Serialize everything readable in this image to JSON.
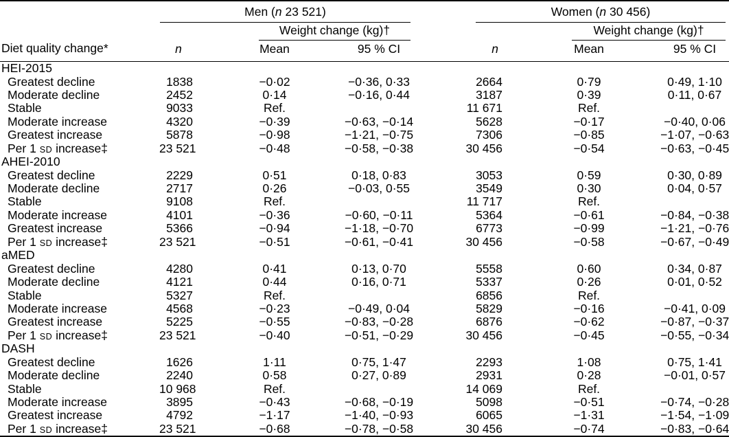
{
  "colors": {
    "background": "#ffffff",
    "text": "#000000",
    "rule": "#000000"
  },
  "table": {
    "stub_header": "Diet quality change*",
    "weight_change_header": "Weight change (kg)†",
    "col_n": "n",
    "col_mean": "Mean",
    "col_ci": "95 % CI",
    "smallcaps_token": "SD",
    "groups": {
      "men": {
        "pre": "Men (",
        "n_italic": "n",
        "post": " 23 521)"
      },
      "women": {
        "pre": "Women (",
        "n_italic": "n",
        "post": " 30 456)"
      }
    },
    "sections": [
      {
        "name": "HEI-2015",
        "rows": [
          {
            "label": "Greatest decline",
            "men_n": "1838",
            "men_mean": "−0·02",
            "men_ci": "−0·36, 0·33",
            "women_n": "2664",
            "women_mean": "0·79",
            "women_ci": "0·49, 1·10"
          },
          {
            "label": "Moderate decline",
            "men_n": "2452",
            "men_mean": "0·14",
            "men_ci": "−0·16, 0·44",
            "women_n": "3187",
            "women_mean": "0·39",
            "women_ci": "0·11, 0·67"
          },
          {
            "label": "Stable",
            "men_n": "9033",
            "men_mean": "Ref.",
            "men_ci": "",
            "women_n": "11 671",
            "women_mean": "Ref.",
            "women_ci": ""
          },
          {
            "label": "Moderate increase",
            "men_n": "4320",
            "men_mean": "−0·39",
            "men_ci": "−0·63, −0·14",
            "women_n": "5628",
            "women_mean": "−0·17",
            "women_ci": "−0·40, 0·06"
          },
          {
            "label": "Greatest increase",
            "men_n": "5878",
            "men_mean": "−0·98",
            "men_ci": "−1·21, −0·75",
            "women_n": "7306",
            "women_mean": "−0·85",
            "women_ci": "−1·07, −0·63"
          },
          {
            "label": "Per 1 SD increase‡",
            "men_n": "23 521",
            "men_mean": "−0·48",
            "men_ci": "−0·58, −0·38",
            "women_n": "30 456",
            "women_mean": "−0·54",
            "women_ci": "−0·63, −0·45"
          }
        ]
      },
      {
        "name": "AHEI-2010",
        "rows": [
          {
            "label": "Greatest decline",
            "men_n": "2229",
            "men_mean": "0·51",
            "men_ci": "0·18, 0·83",
            "women_n": "3053",
            "women_mean": "0·59",
            "women_ci": "0·30, 0·89"
          },
          {
            "label": "Moderate decline",
            "men_n": "2717",
            "men_mean": "0·26",
            "men_ci": "−0·03, 0·55",
            "women_n": "3549",
            "women_mean": "0·30",
            "women_ci": "0·04, 0·57"
          },
          {
            "label": "Stable",
            "men_n": "9108",
            "men_mean": "Ref.",
            "men_ci": "",
            "women_n": "11 717",
            "women_mean": "Ref.",
            "women_ci": ""
          },
          {
            "label": "Moderate increase",
            "men_n": "4101",
            "men_mean": "−0·36",
            "men_ci": "−0·60, −0·11",
            "women_n": "5364",
            "women_mean": "−0·61",
            "women_ci": "−0·84, −0·38"
          },
          {
            "label": "Greatest increase",
            "men_n": "5366",
            "men_mean": "−0·94",
            "men_ci": "−1·18, −0·70",
            "women_n": "6773",
            "women_mean": "−0·99",
            "women_ci": "−1·21, −0·76"
          },
          {
            "label": "Per 1 SD increase‡",
            "men_n": "23 521",
            "men_mean": "−0·51",
            "men_ci": "−0·61, −0·41",
            "women_n": "30 456",
            "women_mean": "−0·58",
            "women_ci": "−0·67, −0·49"
          }
        ]
      },
      {
        "name": "aMED",
        "rows": [
          {
            "label": "Greatest decline",
            "men_n": "4280",
            "men_mean": "0·41",
            "men_ci": "0·13, 0·70",
            "women_n": "5558",
            "women_mean": "0·60",
            "women_ci": "0·34, 0·87"
          },
          {
            "label": "Moderate decline",
            "men_n": "4121",
            "men_mean": "0·44",
            "men_ci": "0·16, 0·71",
            "women_n": "5337",
            "women_mean": "0·26",
            "women_ci": "0·01, 0·52"
          },
          {
            "label": "Stable",
            "men_n": "5327",
            "men_mean": "Ref.",
            "men_ci": "",
            "women_n": "6856",
            "women_mean": "Ref.",
            "women_ci": ""
          },
          {
            "label": "Moderate increase",
            "men_n": "4568",
            "men_mean": "−0·23",
            "men_ci": "−0·49, 0·04",
            "women_n": "5829",
            "women_mean": "−0·16",
            "women_ci": "−0·41, 0·09"
          },
          {
            "label": "Greatest increase",
            "men_n": "5225",
            "men_mean": "−0·55",
            "men_ci": "−0·83, −0·28",
            "women_n": "6876",
            "women_mean": "−0·62",
            "women_ci": "−0·87, −0·37"
          },
          {
            "label": "Per 1 SD increase‡",
            "men_n": "23 521",
            "men_mean": "−0·40",
            "men_ci": "−0·51, −0·29",
            "women_n": "30 456",
            "women_mean": "−0·45",
            "women_ci": "−0·55, −0·34"
          }
        ]
      },
      {
        "name": "DASH",
        "rows": [
          {
            "label": "Greatest decline",
            "men_n": "1626",
            "men_mean": "1·11",
            "men_ci": "0·75, 1·47",
            "women_n": "2293",
            "women_mean": "1·08",
            "women_ci": "0·75, 1·41"
          },
          {
            "label": "Moderate decline",
            "men_n": "2240",
            "men_mean": "0·58",
            "men_ci": "0·27, 0·89",
            "women_n": "2931",
            "women_mean": "0·28",
            "women_ci": "−0·01, 0·57"
          },
          {
            "label": "Stable",
            "men_n": "10 968",
            "men_mean": "Ref.",
            "men_ci": "",
            "women_n": "14 069",
            "women_mean": "Ref.",
            "women_ci": ""
          },
          {
            "label": "Moderate increase",
            "men_n": "3895",
            "men_mean": "−0·43",
            "men_ci": "−0·68, −0·19",
            "women_n": "5098",
            "women_mean": "−0·51",
            "women_ci": "−0·74, −0·28"
          },
          {
            "label": "Greatest increase",
            "men_n": "4792",
            "men_mean": "−1·17",
            "men_ci": "−1·40, −0·93",
            "women_n": "6065",
            "women_mean": "−1·31",
            "women_ci": "−1·54, −1·09"
          },
          {
            "label": "Per 1 SD increase‡",
            "men_n": "23 521",
            "men_mean": "−0·68",
            "men_ci": "−0·78, −0·58",
            "women_n": "30 456",
            "women_mean": "−0·74",
            "women_ci": "−0·83, −0·64"
          }
        ]
      }
    ]
  }
}
